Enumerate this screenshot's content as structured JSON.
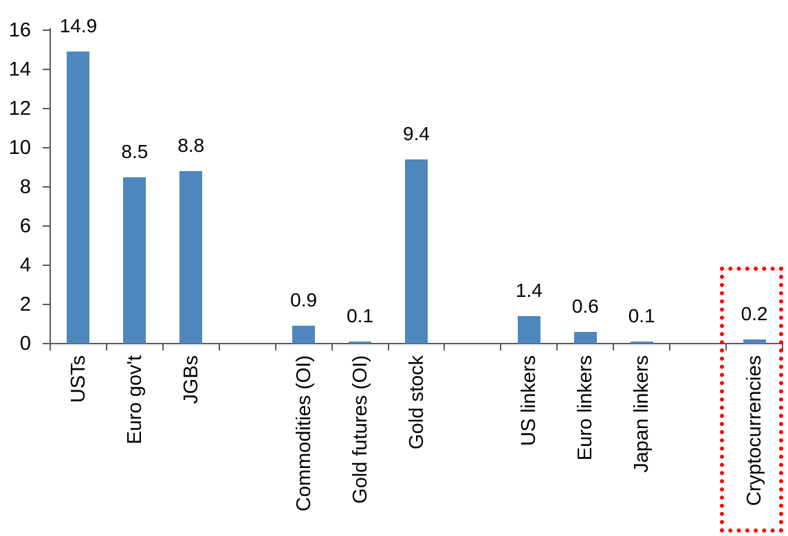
{
  "chart_data": {
    "type": "bar",
    "title": "",
    "xlabel": "",
    "ylabel": "",
    "categories": [
      "USTs",
      "Euro gov't",
      "JGBs",
      "",
      "Commodities (OI)",
      "Gold futures (OI)",
      "Gold stock",
      "",
      "US linkers",
      "Euro linkers",
      "Japan linkers",
      "",
      "Cryptocurrencies"
    ],
    "values": [
      14.9,
      8.5,
      8.8,
      null,
      0.9,
      0.1,
      9.4,
      null,
      1.4,
      0.6,
      0.1,
      null,
      0.2
    ],
    "data_labels": [
      "14.9",
      "8.5",
      "8.8",
      "",
      "0.9",
      "0.1",
      "9.4",
      "",
      "1.4",
      "0.6",
      "0.1",
      "",
      "0.2"
    ],
    "yticks": [
      "0",
      "2",
      "4",
      "6",
      "8",
      "10",
      "12",
      "14",
      "16"
    ],
    "ylim": [
      0,
      16
    ],
    "ytick_interval": 2,
    "grid": false,
    "legend": false,
    "bar_color": "#4E86BE",
    "axis_color": "#595959",
    "text_color": "#000000",
    "highlight": {
      "category": "Cryptocurrencies",
      "category_index": 12,
      "style": "dotted-box",
      "color": "#FF0000"
    }
  }
}
